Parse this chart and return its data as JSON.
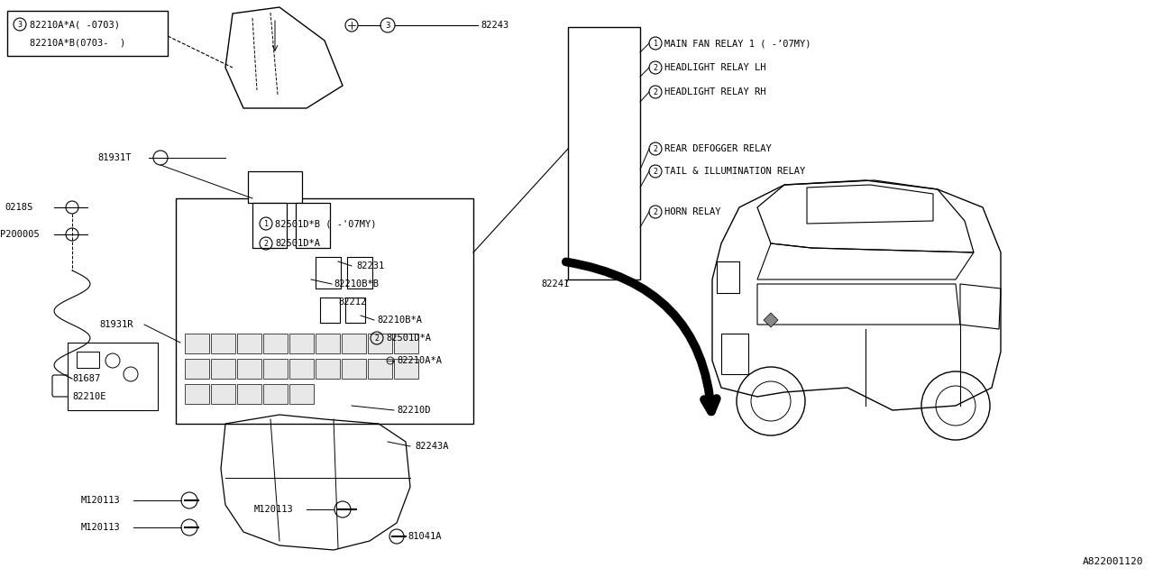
{
  "bg_color": "#ffffff",
  "line_color": "#000000",
  "text_color": "#000000",
  "watermark": "A822001120",
  "fs": 7.5,
  "relay_labels": [
    [
      "1",
      "MAIN FAN RELAY 1 ( -’07MY)"
    ],
    [
      "2",
      "HEADLIGHT RELAY LH"
    ],
    [
      "2",
      "HEADLIGHT RELAY RH"
    ],
    [
      "2",
      "REAR DEFOGGER RELAY"
    ],
    [
      "2",
      "TAIL & ILLUMINATION RELAY"
    ],
    [
      "2",
      "HORN RELAY"
    ]
  ]
}
